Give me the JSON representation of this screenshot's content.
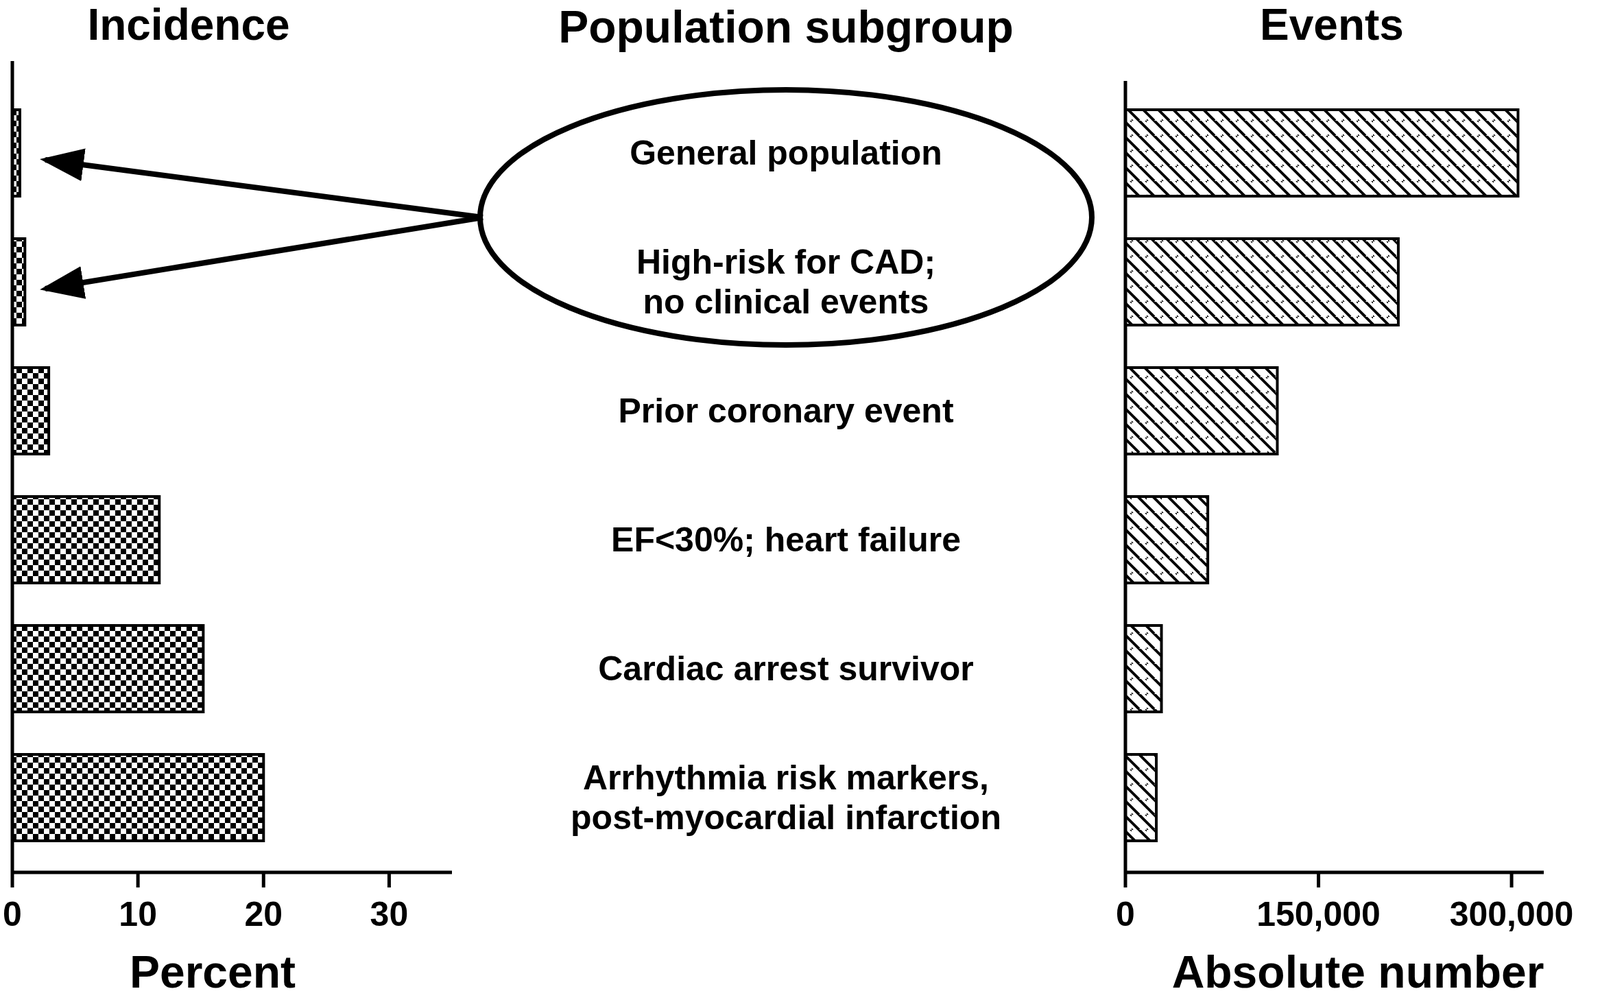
{
  "title": "Population subgroup",
  "chart_data": [
    {
      "type": "bar",
      "orientation": "horizontal",
      "title": "Incidence",
      "x_label": "Percent",
      "categories": [
        "General population",
        "High-risk for CAD;\nno clinical events",
        "Prior coronary event",
        "EF<30%; heart failure",
        "Cardiac arrest survivor",
        "Arrhythmia risk markers,\npost-myocardial infarction"
      ],
      "values": [
        0.6,
        1.0,
        2.9,
        11.7,
        15.2,
        20.0
      ],
      "color": "#000000",
      "xlim": [
        0,
        35
      ],
      "xticks": [
        0,
        10,
        20,
        30
      ],
      "grid": false
    },
    {
      "type": "bar",
      "orientation": "horizontal",
      "title": "Events",
      "x_label": "Absolute number",
      "values": [
        305000,
        212000,
        118000,
        64000,
        28000,
        24000
      ],
      "color": "#000000",
      "xlim": [
        0,
        325000
      ],
      "xticks": [
        0,
        {
          "value": 150000,
          "label": "150,000"
        },
        {
          "value": 300000,
          "label": "300,000"
        }
      ],
      "grid": false
    }
  ]
}
